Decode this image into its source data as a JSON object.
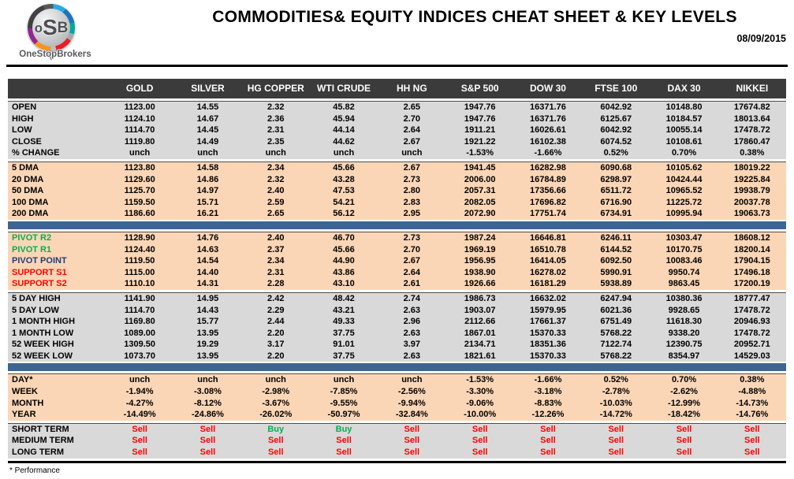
{
  "header": {
    "title": "COMMODITIES& EQUITY INDICES CHEAT SHEET & KEY LEVELS",
    "date": "08/09/2015",
    "logo": {
      "letter1": "o",
      "letter2": "S",
      "letter3": "B",
      "brand": "OneStopBrokers"
    }
  },
  "colors": {
    "header_bar": "#3b3b3b",
    "section_gray": "#d9d9d9",
    "section_peach": "#fbd6b6",
    "divider_blue": "#3e6491",
    "buy_green": "#00b050",
    "sell_red": "#ff0000",
    "pivot_navy": "#1f3d7a"
  },
  "table": {
    "columns": [
      "GOLD",
      "SILVER",
      "HG COPPER",
      "WTI CRUDE",
      "HH NG",
      "S&P 500",
      "DOW 30",
      "FTSE 100",
      "DAX 30",
      "NIKKEI"
    ],
    "sections": [
      {
        "bg": "gray",
        "rows": [
          {
            "label": "OPEN",
            "values": [
              "1123.00",
              "14.55",
              "2.32",
              "45.82",
              "2.65",
              "1947.76",
              "16371.76",
              "6042.92",
              "10148.80",
              "17674.82"
            ]
          },
          {
            "label": "HIGH",
            "values": [
              "1124.10",
              "14.67",
              "2.36",
              "45.94",
              "2.70",
              "1947.76",
              "16371.76",
              "6125.67",
              "10184.57",
              "18013.64"
            ]
          },
          {
            "label": "LOW",
            "values": [
              "1114.70",
              "14.45",
              "2.31",
              "44.14",
              "2.64",
              "1911.21",
              "16026.61",
              "6042.92",
              "10055.14",
              "17478.72"
            ]
          },
          {
            "label": "CLOSE",
            "values": [
              "1119.80",
              "14.49",
              "2.35",
              "44.62",
              "2.67",
              "1921.22",
              "16102.38",
              "6074.52",
              "10108.61",
              "17860.47"
            ]
          },
          {
            "label": "% CHANGE",
            "values": [
              "unch",
              "unch",
              "unch",
              "unch",
              "unch",
              "-1.53%",
              "-1.66%",
              "0.52%",
              "0.70%",
              "0.38%"
            ]
          }
        ]
      },
      {
        "bg": "peach",
        "divider_after": true,
        "rows": [
          {
            "label": "5 DMA",
            "values": [
              "1123.80",
              "14.58",
              "2.34",
              "45.66",
              "2.67",
              "1941.45",
              "16282.98",
              "6090.68",
              "10105.62",
              "18019.22"
            ]
          },
          {
            "label": "20 DMA",
            "values": [
              "1129.60",
              "14.86",
              "2.32",
              "43.28",
              "2.73",
              "2006.00",
              "16784.89",
              "6298.97",
              "10424.44",
              "19225.84"
            ]
          },
          {
            "label": "50 DMA",
            "values": [
              "1125.70",
              "14.97",
              "2.40",
              "47.53",
              "2.80",
              "2057.31",
              "17356.66",
              "6511.72",
              "10965.52",
              "19938.79"
            ]
          },
          {
            "label": "100 DMA",
            "values": [
              "1159.50",
              "15.71",
              "2.59",
              "54.21",
              "2.83",
              "2082.05",
              "17696.82",
              "6716.90",
              "11225.72",
              "20037.78"
            ]
          },
          {
            "label": "200 DMA",
            "values": [
              "1186.60",
              "16.21",
              "2.65",
              "56.12",
              "2.95",
              "2072.90",
              "17751.74",
              "6734.91",
              "10995.94",
              "19063.73"
            ]
          }
        ]
      },
      {
        "bg": "peach",
        "rows": [
          {
            "label": "PIVOT R2",
            "label_color": "green",
            "values": [
              "1128.90",
              "14.76",
              "2.40",
              "46.70",
              "2.73",
              "1987.24",
              "16646.81",
              "6246.11",
              "10303.47",
              "18608.12"
            ]
          },
          {
            "label": "PIVOT R1",
            "label_color": "green",
            "values": [
              "1124.40",
              "14.63",
              "2.37",
              "45.66",
              "2.70",
              "1969.19",
              "16510.78",
              "6144.52",
              "10170.75",
              "18200.14"
            ]
          },
          {
            "label": "PIVOT POINT",
            "label_color": "navy",
            "values": [
              "1119.50",
              "14.54",
              "2.34",
              "44.90",
              "2.67",
              "1956.95",
              "16414.05",
              "6092.50",
              "10083.46",
              "17904.15"
            ]
          },
          {
            "label": "SUPPORT S1",
            "label_color": "red",
            "values": [
              "1115.00",
              "14.40",
              "2.31",
              "43.86",
              "2.64",
              "1938.90",
              "16278.02",
              "5990.91",
              "9950.74",
              "17496.18"
            ]
          },
          {
            "label": "SUPPORT S2",
            "label_color": "red",
            "values": [
              "1110.10",
              "14.31",
              "2.28",
              "43.10",
              "2.61",
              "1926.66",
              "16181.29",
              "5938.89",
              "9863.45",
              "17200.19"
            ]
          }
        ]
      },
      {
        "bg": "gray",
        "divider_after": true,
        "rows": [
          {
            "label": "5 DAY HIGH",
            "values": [
              "1141.90",
              "14.95",
              "2.42",
              "48.42",
              "2.74",
              "1986.73",
              "16632.02",
              "6247.94",
              "10380.36",
              "18777.47"
            ]
          },
          {
            "label": "5 DAY LOW",
            "values": [
              "1114.70",
              "14.43",
              "2.29",
              "43.21",
              "2.63",
              "1903.07",
              "15979.95",
              "6021.36",
              "9928.65",
              "17478.72"
            ]
          },
          {
            "label": "1 MONTH HIGH",
            "values": [
              "1169.80",
              "15.77",
              "2.44",
              "49.33",
              "2.96",
              "2112.66",
              "17661.37",
              "6751.49",
              "11618.30",
              "20946.93"
            ]
          },
          {
            "label": "1 MONTH LOW",
            "values": [
              "1089.00",
              "13.95",
              "2.20",
              "37.75",
              "2.63",
              "1867.01",
              "15370.33",
              "5768.22",
              "9338.20",
              "17478.72"
            ]
          },
          {
            "label": "52 WEEK HIGH",
            "values": [
              "1309.50",
              "19.29",
              "3.17",
              "91.01",
              "3.97",
              "2134.71",
              "18351.36",
              "7122.74",
              "12390.75",
              "20952.71"
            ]
          },
          {
            "label": "52 WEEK LOW",
            "values": [
              "1073.70",
              "13.95",
              "2.20",
              "37.75",
              "2.63",
              "1821.61",
              "15370.33",
              "5768.22",
              "8354.97",
              "14529.03"
            ]
          }
        ]
      },
      {
        "bg": "peach",
        "rows": [
          {
            "label": "DAY*",
            "values": [
              "unch",
              "unch",
              "unch",
              "unch",
              "unch",
              "-1.53%",
              "-1.66%",
              "0.52%",
              "0.70%",
              "0.38%"
            ]
          },
          {
            "label": "WEEK",
            "values": [
              "-1.94%",
              "-3.08%",
              "-2.98%",
              "-7.85%",
              "-2.56%",
              "-3.30%",
              "-3.18%",
              "-2.78%",
              "-2.62%",
              "-4.88%"
            ]
          },
          {
            "label": "MONTH",
            "values": [
              "-4.27%",
              "-8.12%",
              "-3.67%",
              "-9.55%",
              "-9.94%",
              "-9.06%",
              "-8.83%",
              "-10.03%",
              "-12.99%",
              "-14.73%"
            ]
          },
          {
            "label": "YEAR",
            "values": [
              "-14.49%",
              "-24.86%",
              "-26.02%",
              "-50.97%",
              "-32.84%",
              "-10.00%",
              "-12.26%",
              "-14.72%",
              "-18.42%",
              "-14.76%"
            ]
          }
        ]
      },
      {
        "bg": "gray",
        "signals": true,
        "rows": [
          {
            "label": "SHORT TERM",
            "values": [
              "Sell",
              "Sell",
              "Buy",
              "Buy",
              "Sell",
              "Sell",
              "Sell",
              "Sell",
              "Sell",
              "Sell"
            ]
          },
          {
            "label": "MEDIUM TERM",
            "values": [
              "Sell",
              "Sell",
              "Sell",
              "Sell",
              "Sell",
              "Sell",
              "Sell",
              "Sell",
              "Sell",
              "Sell"
            ]
          },
          {
            "label": "LONG TERM",
            "values": [
              "Sell",
              "Sell",
              "Sell",
              "Sell",
              "Sell",
              "Sell",
              "Sell",
              "Sell",
              "Sell",
              "Sell"
            ]
          }
        ]
      }
    ]
  },
  "footnote": "* Performance"
}
